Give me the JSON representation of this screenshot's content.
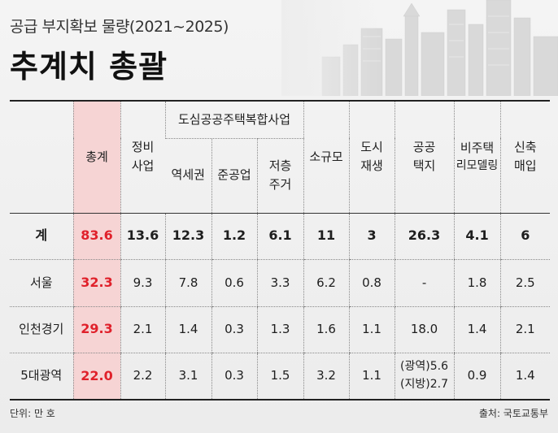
{
  "header": {
    "subtitle": "공급 부지확보 물량(2021~2025)",
    "title": "추계치 총괄"
  },
  "table": {
    "headers": {
      "total": "총계",
      "redevelopment": "정비\n사업",
      "group": "도심공공주택복합사업",
      "station_area": "역세권",
      "semi_industrial": "준공업",
      "low_rise": "저층\n주거",
      "small_scale": "소규모",
      "urban_regen": "도시\n재생",
      "public_land": "공공\n택지",
      "non_housing": "비주택",
      "remodeling": "리모델링",
      "new_purchase": "신축\n매입"
    },
    "rows": [
      {
        "region": "계",
        "values": [
          "83.6",
          "13.6",
          "12.3",
          "1.2",
          "6.1",
          "11",
          "3",
          "26.3",
          "4.1",
          "6"
        ]
      },
      {
        "region": "서울",
        "values": [
          "32.3",
          "9.3",
          "7.8",
          "0.6",
          "3.3",
          "6.2",
          "0.8",
          "-",
          "1.8",
          "2.5"
        ]
      },
      {
        "region": "인천경기",
        "values": [
          "29.3",
          "2.1",
          "1.4",
          "0.3",
          "1.3",
          "1.6",
          "1.1",
          "18.0",
          "1.4",
          "2.1"
        ]
      },
      {
        "region": "5대광역",
        "values": [
          "22.0",
          "2.2",
          "3.1",
          "0.3",
          "1.5",
          "3.2",
          "1.1",
          "(광역)5.6\n(지방)2.7",
          "0.9",
          "1.4"
        ]
      }
    ]
  },
  "footer": {
    "unit": "단위: 만 호",
    "source": "출처: 국토교통부"
  },
  "colors": {
    "total_highlight_bg": "#f6d4d4",
    "total_text": "#e0212b"
  }
}
